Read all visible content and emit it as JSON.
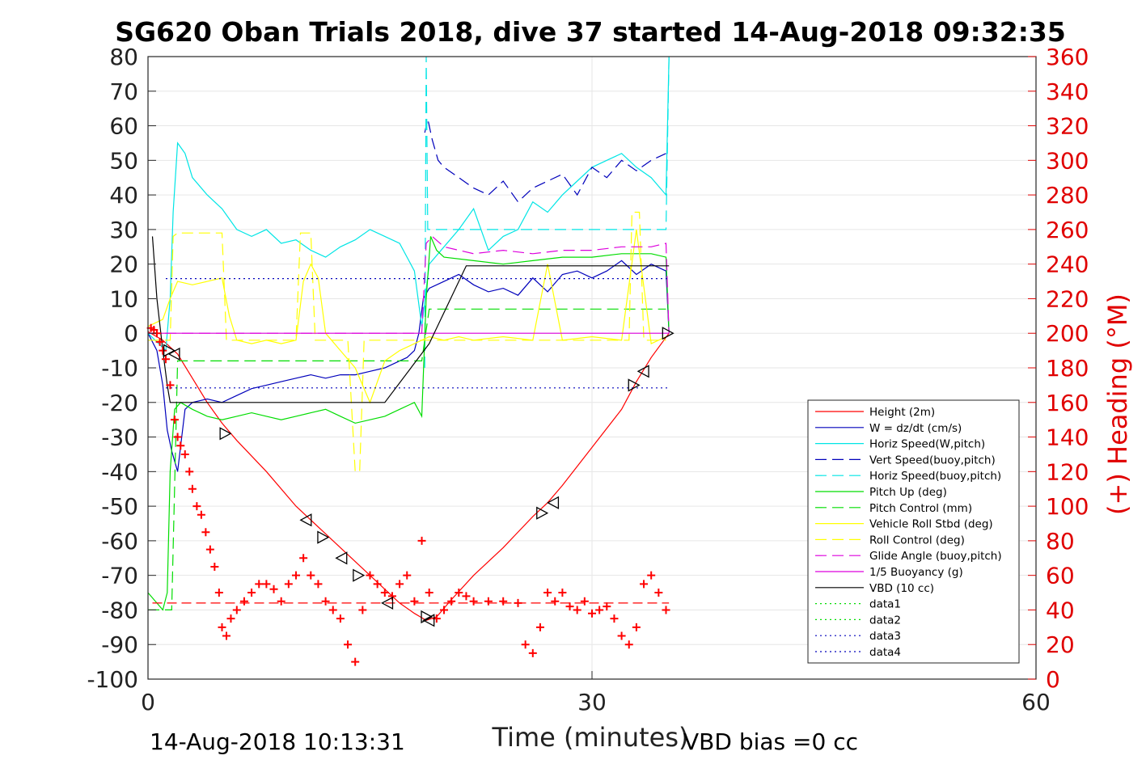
{
  "chart_data": {
    "type": "line",
    "title": "SG620 Oban Trials 2018, dive 37 started 14-Aug-2018 09:32:35",
    "xlabel": "Time (minutes)",
    "ylabel_left": "",
    "ylabel_right": "(+) Heading (°M)",
    "xlim": [
      0,
      60
    ],
    "ylim_left": [
      -100,
      80
    ],
    "ylim_right": [
      0,
      360
    ],
    "x_ticks": [
      "0",
      "30",
      "60"
    ],
    "y_ticks_left": [
      "80",
      "70",
      "60",
      "50",
      "40",
      "30",
      "20",
      "10",
      "0",
      "-10",
      "-20",
      "-30",
      "-40",
      "-50",
      "-60",
      "-70",
      "-80",
      "-90",
      "-100"
    ],
    "y_ticks_right": [
      "360",
      "340",
      "320",
      "300",
      "280",
      "260",
      "240",
      "220",
      "200",
      "180",
      "160",
      "140",
      "120",
      "100",
      "80",
      "60",
      "40",
      "20",
      "0"
    ],
    "grid": true,
    "legend_position": "lower-right",
    "footer_left": "14-Aug-2018 10:13:31",
    "footer_right": "VBD bias =0 cc",
    "series": [
      {
        "name": "Height (2m)",
        "color": "#ff0000",
        "style": "solid",
        "x": [
          0,
          1,
          2,
          3,
          4,
          5,
          6,
          8,
          10,
          12,
          14,
          16,
          17,
          18,
          18.8,
          19.5,
          20.5,
          22,
          24,
          26,
          27,
          28,
          30,
          32,
          33,
          34,
          35.2
        ],
        "values": [
          0.5,
          -2,
          -6,
          -13,
          -20,
          -26,
          -31,
          -40,
          -50,
          -58,
          -66,
          -74,
          -78,
          -81,
          -83,
          -82,
          -77,
          -70,
          -62,
          -53,
          -49,
          -44,
          -33,
          -22,
          -14,
          -7,
          0
        ]
      },
      {
        "name": "W = dz/dt (cm/s)",
        "color": "#0000bb",
        "style": "solid",
        "x": [
          0,
          0.6,
          1.0,
          1.3,
          1.6,
          2.0,
          2.5,
          3,
          4,
          5,
          6,
          7,
          8,
          9,
          10,
          11,
          12,
          13,
          14,
          15,
          16,
          17,
          17.5,
          18,
          18.3,
          18.6,
          19,
          20,
          21,
          22,
          23,
          24,
          25,
          26,
          27,
          28,
          29,
          30,
          31,
          32,
          33,
          34,
          35,
          35.2
        ],
        "values": [
          0,
          -5,
          -15,
          -28,
          -34,
          -40,
          -22,
          -20,
          -19,
          -20,
          -18,
          -16,
          -15,
          -14,
          -13,
          -12,
          -13,
          -12,
          -12,
          -11,
          -10,
          -8,
          -7,
          -5,
          0,
          10,
          13,
          15,
          17,
          14,
          12,
          13,
          11,
          16,
          12,
          17,
          18,
          16,
          18,
          21,
          17,
          20,
          18,
          0
        ]
      },
      {
        "name": "Horiz Speed(W,pitch)",
        "color": "#00e5e5",
        "style": "solid",
        "x": [
          0,
          1.2,
          1.5,
          1.7,
          2.0,
          2.5,
          3,
          4,
          5,
          6,
          7,
          8,
          9,
          10,
          11,
          12,
          13,
          14,
          15,
          16,
          17,
          17.5,
          18,
          18.5,
          19,
          20,
          21,
          22,
          23,
          24,
          25,
          26,
          27,
          28,
          29,
          30,
          31,
          32,
          33,
          34,
          35,
          35.2
        ],
        "values": [
          0,
          -5,
          10,
          35,
          55,
          52,
          45,
          40,
          36,
          30,
          28,
          30,
          26,
          27,
          24,
          22,
          25,
          27,
          30,
          28,
          26,
          22,
          18,
          2,
          20,
          25,
          30,
          36,
          24,
          28,
          30,
          38,
          35,
          40,
          44,
          48,
          50,
          52,
          48,
          45,
          40,
          80
        ]
      },
      {
        "name": "Vert Speed(buoy,pitch)",
        "color": "#0000bb",
        "style": "dashed",
        "x": [
          18.7,
          18.9,
          19.2,
          19.6,
          20,
          21,
          22,
          23,
          24,
          25,
          26,
          27,
          28,
          29,
          30,
          31,
          32,
          33,
          34,
          35
        ],
        "values": [
          58,
          62,
          56,
          50,
          48,
          45,
          42,
          40,
          44,
          38,
          42,
          44,
          46,
          40,
          48,
          45,
          50,
          47,
          50,
          52
        ]
      },
      {
        "name": "Horiz Speed(buoy,pitch)",
        "color": "#00e5e5",
        "style": "dashed",
        "x": [
          18.7,
          18.8,
          18.9,
          19.2,
          20,
          25,
          30,
          35,
          35.2
        ],
        "values": [
          -10,
          80,
          30,
          30,
          30,
          30,
          30,
          30,
          80
        ]
      },
      {
        "name": "Pitch Up (deg)",
        "color": "#00dd00",
        "style": "solid",
        "x": [
          0,
          1.0,
          1.3,
          1.5,
          1.8,
          2.2,
          3,
          4,
          5,
          6,
          7,
          8,
          9,
          10,
          11,
          12,
          13,
          14,
          15,
          16,
          17,
          18,
          18.5,
          18.8,
          19.1,
          19.5,
          20,
          22,
          24,
          26,
          28,
          30,
          32,
          34,
          35,
          35.2
        ],
        "values": [
          -75,
          -80,
          -75,
          -40,
          -22,
          -20,
          -22,
          -24,
          -25,
          -24,
          -23,
          -24,
          -25,
          -24,
          -23,
          -22,
          -24,
          -26,
          -25,
          -24,
          -22,
          -20,
          -24,
          10,
          28,
          24,
          22,
          21,
          20,
          21,
          22,
          22,
          23,
          23,
          22,
          0
        ]
      },
      {
        "name": "Pitch Control (mm)",
        "color": "#00dd00",
        "style": "dashed",
        "x": [
          0,
          1.6,
          2.0,
          3,
          10,
          18.5,
          19,
          20,
          25,
          30,
          35
        ],
        "values": [
          -80,
          -80,
          -8,
          -8,
          -8,
          -8,
          7,
          7,
          7,
          7,
          7
        ]
      },
      {
        "name": "Vehicle Roll Stbd (deg)",
        "color": "#ffff00",
        "style": "solid",
        "x": [
          0,
          1.0,
          1.5,
          2.0,
          3,
          4,
          5,
          5.5,
          6,
          7,
          8,
          9,
          10,
          10.5,
          11,
          11.5,
          12,
          13,
          14,
          15,
          16,
          17,
          18,
          19,
          20,
          21,
          22,
          24,
          26,
          27,
          28,
          30,
          32,
          33,
          34,
          35
        ],
        "values": [
          2,
          4,
          10,
          15,
          14,
          15,
          16,
          5,
          -2,
          -3,
          -2,
          -3,
          -2,
          15,
          20,
          16,
          0,
          -5,
          -10,
          -20,
          -8,
          -5,
          -3,
          -1,
          -2,
          -1,
          -2,
          -1,
          -2,
          20,
          -2,
          -1,
          -2,
          30,
          -3,
          -1
        ]
      },
      {
        "name": "Roll Control (deg)",
        "color": "#ffff00",
        "style": "dashed",
        "x": [
          0,
          1.5,
          1.7,
          2.0,
          3.0,
          5.0,
          5.3,
          5.5,
          10,
          10.3,
          11.0,
          11.3,
          13.5,
          14.0,
          14.3,
          14.6,
          16,
          20,
          25,
          30,
          32.5,
          32.7,
          33.2,
          33.5,
          35
        ],
        "values": [
          -2,
          -2,
          28,
          29,
          29,
          29,
          -2,
          -2,
          -2,
          29,
          29,
          -2,
          -2,
          -40,
          -40,
          -2,
          -2,
          -2,
          -2,
          -2,
          -2,
          35,
          35,
          -2,
          -2
        ]
      },
      {
        "name": "Glide Angle (buoy,pitch)",
        "color": "#dd00dd",
        "style": "dashed",
        "x": [
          0,
          5,
          10,
          15,
          18.5,
          18.8,
          19.2,
          20,
          22,
          24,
          26,
          28,
          30,
          32,
          34,
          35,
          35.2
        ],
        "values": [
          0,
          0,
          0,
          0,
          0,
          26,
          28,
          25,
          23,
          24,
          23,
          24,
          24,
          25,
          25,
          26,
          0
        ]
      },
      {
        "name": "1/5 Buoyancy (g)",
        "color": "#dd00dd",
        "style": "solid",
        "x": [
          0,
          35.2
        ],
        "values": [
          0,
          0
        ]
      },
      {
        "name": "VBD (10 cc)",
        "color": "#000000",
        "style": "solid",
        "x": [
          0.3,
          0.6,
          1.0,
          1.3,
          1.5,
          16.0,
          19.0,
          21.5,
          35.2
        ],
        "values": [
          28,
          10,
          -5,
          -15,
          -20,
          -20,
          -3,
          19.5,
          19.5
        ]
      },
      {
        "name": "data1",
        "color": "#00dd00",
        "style": "dotted",
        "x": [],
        "values": []
      },
      {
        "name": "data2",
        "color": "#00dd00",
        "style": "dotted",
        "x": [],
        "values": []
      },
      {
        "name": "data3",
        "color": "#0000bb",
        "style": "dotted",
        "x": [
          1.2,
          35.2
        ],
        "values": [
          15.8,
          15.8
        ]
      },
      {
        "name": "data4",
        "color": "#0000bb",
        "style": "dotted",
        "x": [
          1.2,
          35.2
        ],
        "values": [
          -15.8,
          -15.8
        ]
      }
    ],
    "extra_marks": {
      "heading_points": {
        "axis": "right",
        "color": "#ff0000",
        "marker": "+",
        "x": [
          0.2,
          0.4,
          0.6,
          0.8,
          1.0,
          1.2,
          1.5,
          1.8,
          2.0,
          2.2,
          2.5,
          2.8,
          3.0,
          3.3,
          3.6,
          3.9,
          4.2,
          4.5,
          4.8,
          5.0,
          5.3,
          5.6,
          6.0,
          6.5,
          7.0,
          7.5,
          8.0,
          8.5,
          9.0,
          9.5,
          10.0,
          10.5,
          11.0,
          11.5,
          12.0,
          12.5,
          13.0,
          13.5,
          14.0,
          14.5,
          15.0,
          15.5,
          16.0,
          16.5,
          17.0,
          17.5,
          18.0,
          18.5,
          19.0,
          19.5,
          20.0,
          20.5,
          21.0,
          21.5,
          22.0,
          23.0,
          24.0,
          25.0,
          25.5,
          26.0,
          26.5,
          27.0,
          27.5,
          28.0,
          28.5,
          29.0,
          29.5,
          30.0,
          30.5,
          31.0,
          31.5,
          32.0,
          32.5,
          33.0,
          33.5,
          34.0,
          34.5,
          35.0
        ],
        "values": [
          203,
          202,
          200,
          195,
          190,
          185,
          170,
          150,
          140,
          135,
          130,
          120,
          110,
          100,
          95,
          85,
          75,
          65,
          50,
          30,
          25,
          35,
          40,
          45,
          50,
          55,
          55,
          52,
          45,
          55,
          60,
          70,
          60,
          55,
          45,
          40,
          35,
          20,
          10,
          40,
          60,
          55,
          50,
          48,
          55,
          60,
          45,
          80,
          50,
          35,
          40,
          45,
          50,
          48,
          45,
          45,
          45,
          44,
          20,
          15,
          30,
          50,
          45,
          50,
          42,
          40,
          45,
          38,
          40,
          42,
          35,
          25,
          20,
          30,
          55,
          60,
          50,
          40
        ]
      },
      "height_markers": {
        "axis": "left",
        "color": "#000000",
        "marker": "triangle",
        "x": [
          1.4,
          1.8,
          5.2,
          10.7,
          11.8,
          13.1,
          14.2,
          16.2,
          18.8,
          19.0,
          26.6,
          27.4,
          32.8,
          33.5,
          35.1
        ],
        "values": [
          -5,
          -6,
          -29,
          -54,
          -59,
          -65,
          -70,
          -78,
          -82,
          -83,
          -52,
          -49,
          -15,
          -11,
          0
        ]
      }
    }
  }
}
